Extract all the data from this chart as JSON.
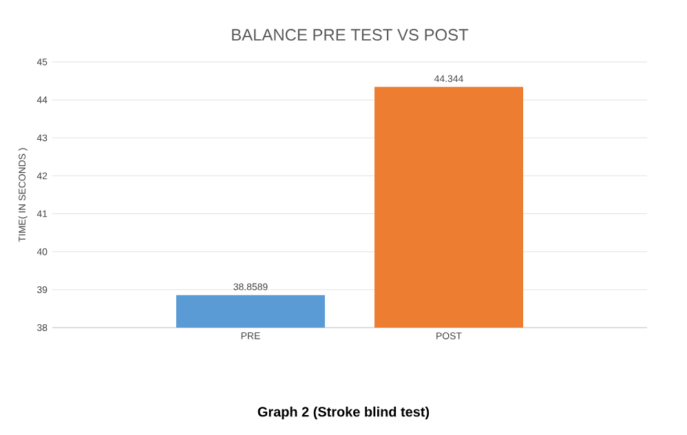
{
  "chart_data": {
    "type": "bar",
    "title": "BALANCE PRE TEST VS POST",
    "ylabel": "TIME( IN SECONDS )",
    "categories": [
      "PRE",
      "POST"
    ],
    "series": [
      {
        "color": "#5b9bd5",
        "values": [
          38.8589,
          null
        ]
      },
      {
        "color": "#ed7d31",
        "values": [
          null,
          44.344
        ]
      }
    ],
    "ylim": [
      38,
      45
    ],
    "yticks": [
      38,
      39,
      40,
      41,
      42,
      43,
      44,
      45
    ],
    "grid": "y",
    "data_labels": true,
    "annotations": [
      "Graph 2 (Stroke blind test)"
    ]
  }
}
